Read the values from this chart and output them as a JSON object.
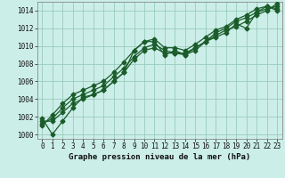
{
  "title": "Graphe pression niveau de la mer (hPa)",
  "bg_color": "#cceee8",
  "grid_color": "#99ccbb",
  "line_color": "#1a5c2a",
  "xlim": [
    -0.5,
    23.5
  ],
  "ylim": [
    999.5,
    1015.0
  ],
  "xticks": [
    0,
    1,
    2,
    3,
    4,
    5,
    6,
    7,
    8,
    9,
    10,
    11,
    12,
    13,
    14,
    15,
    16,
    17,
    18,
    19,
    20,
    21,
    22,
    23
  ],
  "yticks": [
    1000,
    1002,
    1004,
    1006,
    1008,
    1010,
    1012,
    1014
  ],
  "series": [
    [
      1001.8,
      1000.0,
      1001.5,
      1003.0,
      1004.2,
      1004.5,
      1005.0,
      1006.0,
      1007.0,
      1009.5,
      1010.5,
      1010.5,
      1009.0,
      1009.5,
      1009.0,
      1009.5,
      1010.5,
      1011.0,
      1011.5,
      1012.5,
      1012.0,
      1013.8,
      1014.5,
      1014.0
    ],
    [
      1001.5,
      1001.5,
      1002.5,
      1003.5,
      1004.0,
      1004.5,
      1005.0,
      1006.0,
      1007.0,
      1008.5,
      1009.5,
      1009.8,
      1009.2,
      1009.2,
      1009.0,
      1009.8,
      1010.5,
      1011.2,
      1011.8,
      1012.2,
      1012.8,
      1013.5,
      1014.0,
      1014.8
    ],
    [
      1001.2,
      1001.8,
      1003.0,
      1004.0,
      1004.5,
      1005.0,
      1005.5,
      1006.5,
      1007.5,
      1008.8,
      1009.8,
      1010.2,
      1009.5,
      1009.2,
      1009.2,
      1009.8,
      1010.5,
      1011.5,
      1012.0,
      1012.8,
      1013.2,
      1013.8,
      1014.2,
      1014.5
    ],
    [
      1001.0,
      1002.2,
      1003.5,
      1004.5,
      1005.0,
      1005.5,
      1006.0,
      1007.0,
      1008.2,
      1009.5,
      1010.5,
      1010.8,
      1009.8,
      1009.8,
      1009.5,
      1010.2,
      1011.0,
      1011.8,
      1012.2,
      1013.0,
      1013.5,
      1014.2,
      1014.5,
      1014.2
    ]
  ],
  "marker": "D",
  "markersize": 2.5,
  "linewidth": 0.9,
  "tick_fontsize": 5.5,
  "label_fontsize": 7.0,
  "xlabel_fontsize": 6.5
}
